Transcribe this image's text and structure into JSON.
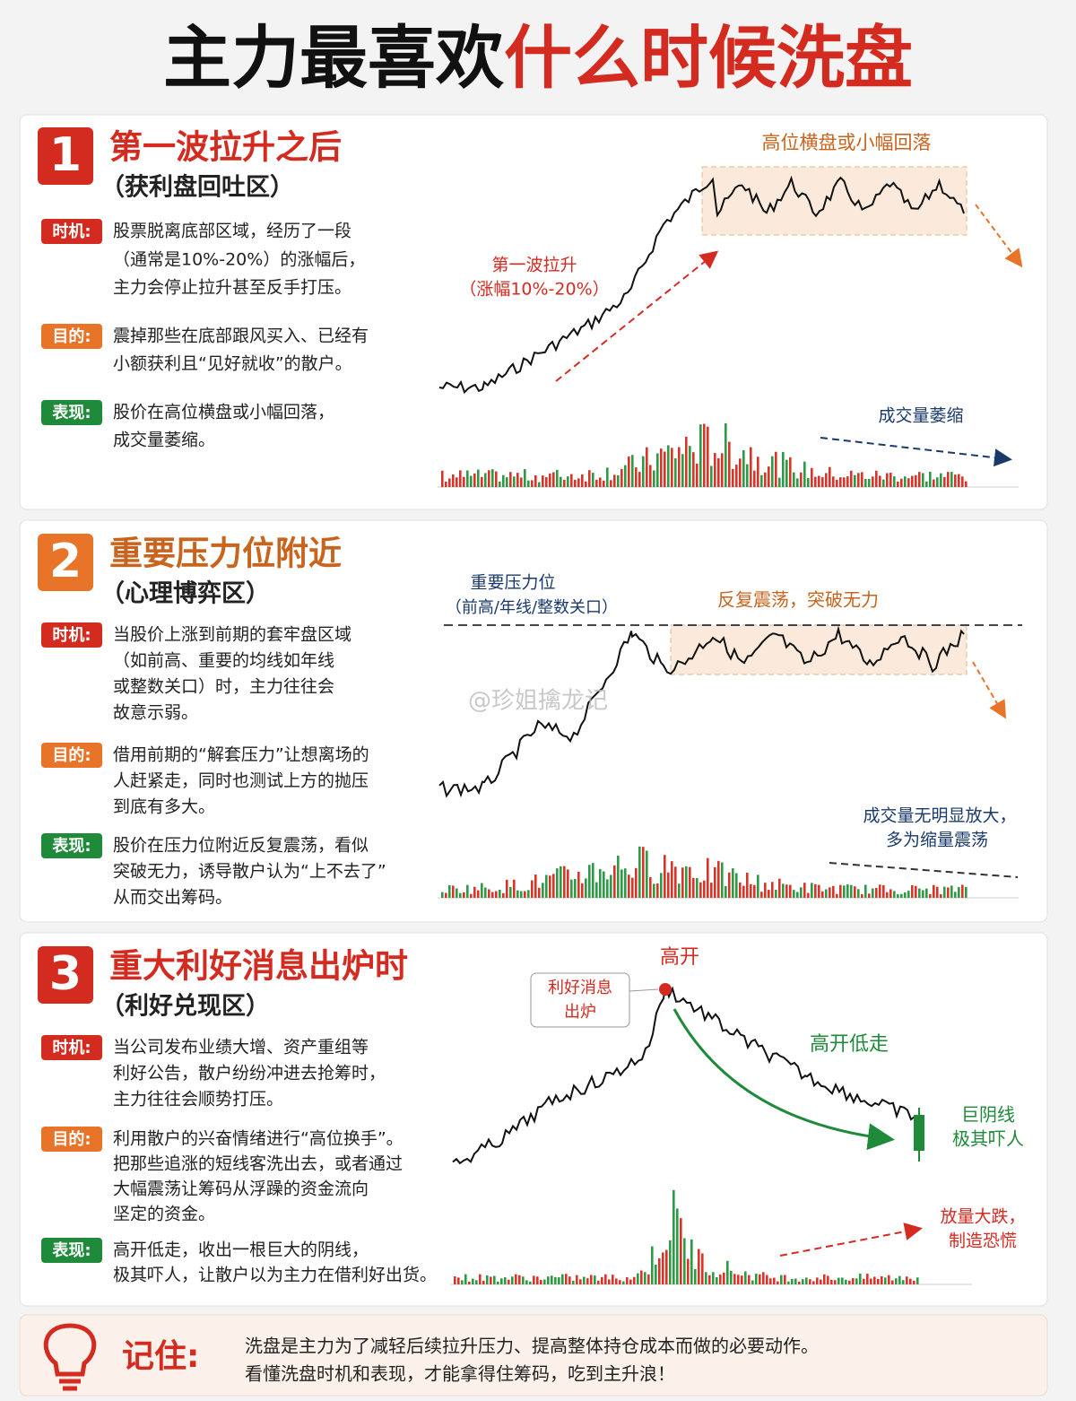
{
  "title": [
    "主力最喜欢",
    "什么时候洗盘"
  ],
  "watermark": "@珍姐擒龙记",
  "sections": [
    {
      "number": "1",
      "heading": "第一波拉升之后",
      "subheading": "（获利盘回吐区）",
      "items": [
        {
          "label": "时机:",
          "lines": [
            "股票脱离底部区域，经历了一段",
            "（通常是10%-20%）的涨幅后，",
            "主力会停止拉升甚至反手打压。"
          ]
        },
        {
          "label": "目的:",
          "lines": [
            "震掉那些在底部跟风买入、已经有",
            "小额获利且“见好就收”的散户。"
          ]
        },
        {
          "label": "表现:",
          "lines": [
            "股价在高位横盘或小幅回落，",
            "成交量萎缩。"
          ]
        }
      ],
      "annotations": [
        "高位横盘或小幅回落",
        "第一波拉升",
        "（涨幅10%-20%）",
        "成交量萎缩"
      ]
    },
    {
      "number": "2",
      "heading": "重要压力位附近",
      "subheading": "（心理博弈区）",
      "items": [
        {
          "label": "时机:",
          "lines": [
            "当股价上涨到前期的套牢盘区域",
            "（如前高、重要的均线如年线",
            "或整数关口）时，主力往往会",
            "故意示弱。"
          ]
        },
        {
          "label": "目的:",
          "lines": [
            "借用前期的“解套压力”让想离场的",
            "人赶紧走，同时也测试上方的抛压",
            "到底有多大。"
          ]
        },
        {
          "label": "表现:",
          "lines": [
            "股价在压力位附近反复震荡，看似",
            "突破无力，诱导散户认为“上不去了”",
            "从而交出筹码。"
          ]
        }
      ],
      "annotations": [
        "重要压力位",
        "（前高/年线/整数关口）",
        "反复震荡，突破无力",
        "成交量无明显放大，",
        "多为缩量震荡"
      ]
    },
    {
      "number": "3",
      "heading": "重大利好消息出炉时",
      "subheading": "（利好兑现区）",
      "items": [
        {
          "label": "时机:",
          "lines": [
            "当公司发布业绩大增、资产重组等",
            "利好公告，散户纷纷冲进去抢筹时，",
            "主力往往会顺势打压。"
          ]
        },
        {
          "label": "目的:",
          "lines": [
            "利用散户的兴奋情绪进行“高位换手”。",
            "把那些追涨的短线客洗出去，或者通过",
            "大幅震荡让筹码从浮躁的资金流向",
            "坚定的资金。"
          ]
        },
        {
          "label": "表现:",
          "lines": [
            "高开低走，收出一根巨大的阴线，",
            "极其吓人，让散户以为主力在借利好出货。"
          ]
        }
      ],
      "annotations": [
        "高开",
        "利好消息",
        "出炉",
        "高开低走",
        "巨阴线",
        "极其吓人",
        "放量大跌，",
        "制造恐慌"
      ]
    }
  ],
  "footer": {
    "label": "记住:",
    "lines": [
      "洗盘是主力为了减轻后续拉升压力、提高整体持仓成本而做的必要动作。",
      "看懂洗盘时机和表现，才能拿得住筹码，吃到主升浪！"
    ]
  }
}
